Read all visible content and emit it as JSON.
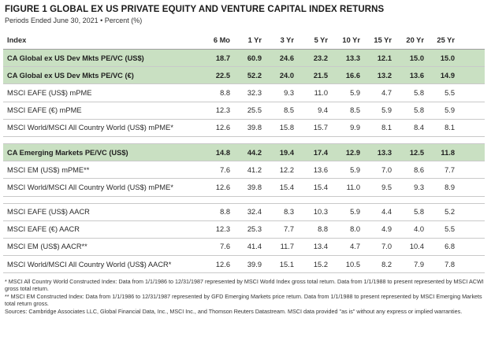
{
  "title": "FIGURE 1  GLOBAL EX US PRIVATE EQUITY AND VENTURE CAPITAL INDEX RETURNS",
  "subtitle": "Periods Ended June 30, 2021 • Percent (%)",
  "header": {
    "index": "Index",
    "periods": [
      "6 Mo",
      "1 Yr",
      "3 Yr",
      "5 Yr",
      "10 Yr",
      "15 Yr",
      "20 Yr",
      "25 Yr"
    ]
  },
  "groups": [
    [
      {
        "name": "CA Global ex US Dev Mkts PE/VC (US$)",
        "highlight": true,
        "values": [
          "18.7",
          "60.9",
          "24.6",
          "23.2",
          "13.3",
          "12.1",
          "15.0",
          "15.0"
        ]
      },
      {
        "name": "CA Global ex US Dev Mkts PE/VC (€)",
        "highlight": true,
        "values": [
          "22.5",
          "52.2",
          "24.0",
          "21.5",
          "16.6",
          "13.2",
          "13.6",
          "14.9"
        ]
      },
      {
        "name": "MSCI EAFE (US$) mPME",
        "highlight": false,
        "values": [
          "8.8",
          "32.3",
          "9.3",
          "11.0",
          "5.9",
          "4.7",
          "5.8",
          "5.5"
        ]
      },
      {
        "name": "MSCI EAFE (€) mPME",
        "highlight": false,
        "values": [
          "12.3",
          "25.5",
          "8.5",
          "9.4",
          "8.5",
          "5.9",
          "5.8",
          "5.9"
        ]
      },
      {
        "name": "MSCI World/MSCI All Country World (US$) mPME*",
        "highlight": false,
        "values": [
          "12.6",
          "39.8",
          "15.8",
          "15.7",
          "9.9",
          "8.1",
          "8.4",
          "8.1"
        ]
      }
    ],
    [
      {
        "name": "CA Emerging Markets PE/VC (US$)",
        "highlight": true,
        "values": [
          "14.8",
          "44.2",
          "19.4",
          "17.4",
          "12.9",
          "13.3",
          "12.5",
          "11.8"
        ]
      },
      {
        "name": "MSCI EM (US$) mPME**",
        "highlight": false,
        "values": [
          "7.6",
          "41.2",
          "12.2",
          "13.6",
          "5.9",
          "7.0",
          "8.6",
          "7.7"
        ]
      },
      {
        "name": "MSCI World/MSCI All Country World (US$) mPME*",
        "highlight": false,
        "values": [
          "12.6",
          "39.8",
          "15.4",
          "15.4",
          "11.0",
          "9.5",
          "9.3",
          "8.9"
        ]
      }
    ],
    [
      {
        "name": "MSCI EAFE (US$) AACR",
        "highlight": false,
        "values": [
          "8.8",
          "32.4",
          "8.3",
          "10.3",
          "5.9",
          "4.4",
          "5.8",
          "5.2"
        ]
      },
      {
        "name": "MSCI EAFE (€) AACR",
        "highlight": false,
        "values": [
          "12.3",
          "25.3",
          "7.7",
          "8.8",
          "8.0",
          "4.9",
          "4.0",
          "5.5"
        ]
      },
      {
        "name": "MSCI EM (US$) AACR**",
        "highlight": false,
        "values": [
          "7.6",
          "41.4",
          "11.7",
          "13.4",
          "4.7",
          "7.0",
          "10.4",
          "6.8"
        ]
      },
      {
        "name": "MSCI World/MSCI All Country World (US$) AACR*",
        "highlight": false,
        "values": [
          "12.6",
          "39.9",
          "15.1",
          "15.2",
          "10.5",
          "8.2",
          "7.9",
          "7.8"
        ]
      }
    ]
  ],
  "notes": [
    "* MSCI All Country World Constructed Index: Data from 1/1/1986 to 12/31/1987 represented by MSCI World Index gross total return. Data from 1/1/1988 to present represented by MSCI ACWI gross total return.",
    "** MSCI EM Constructed Index: Data from 1/1/1986 to 12/31/1987 represented by GFD Emerging Markets price return. Data from 1/1/1988 to present represented by MSCI Emerging Markets total return gross.",
    "Sources: Cambridge Associates LLC, Global Financial Data, Inc., MSCI Inc., and Thomson Reuters Datastream. MSCI data provided \"as is\" without any express or implied warranties."
  ]
}
